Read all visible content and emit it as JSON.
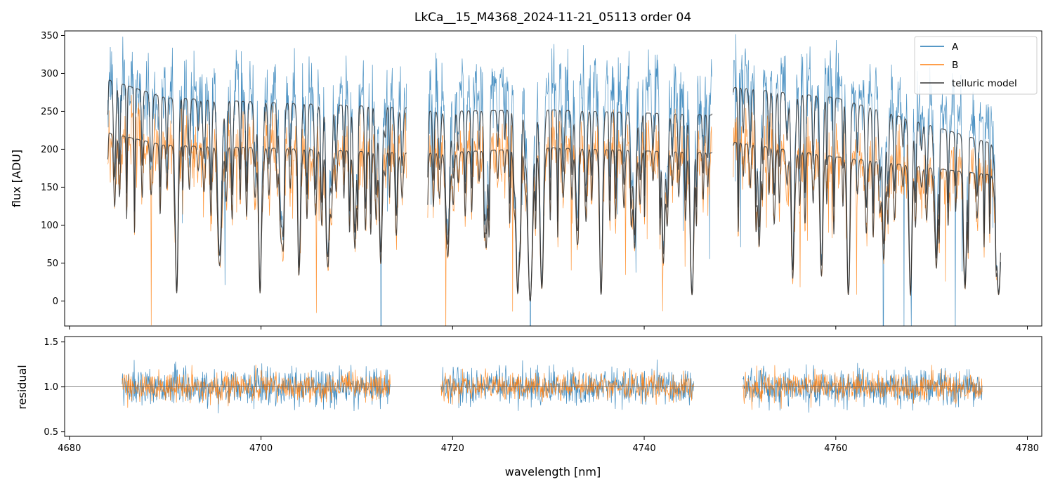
{
  "chart_data": [
    {
      "id": "spectrum",
      "type": "line",
      "title": "LkCa__15_M4368_2024-11-21_05113  order 04",
      "xlabel": "",
      "ylabel": "flux [ADU]",
      "xlim": [
        4679.5,
        4781.5
      ],
      "ylim": [
        -33,
        356
      ],
      "xticks": [
        4680,
        4700,
        4720,
        4740,
        4760,
        4780
      ],
      "xticklabels_shown": false,
      "yticks": [
        0,
        50,
        100,
        150,
        200,
        250,
        300,
        350
      ],
      "ytick_labels": [
        "0",
        "50",
        "100",
        "150",
        "200",
        "250",
        "300",
        "350"
      ],
      "legend": {
        "location": "top-right",
        "entries": [
          {
            "label": "A",
            "color": "#1f77b4"
          },
          {
            "label": "B",
            "color": "#ff7f0e"
          },
          {
            "label": "telluric model",
            "color": "#333333"
          }
        ]
      },
      "segments": [
        {
          "x_start": 4684.0,
          "x_end": 4715.2
        },
        {
          "x_start": 4717.4,
          "x_end": 4747.1
        },
        {
          "x_start": 4749.3,
          "x_end": 4777.2
        }
      ],
      "series": [
        {
          "name": "A",
          "color": "#1f77b4",
          "continuum_anchors": [
            [
              4684,
              290
            ],
            [
              4690,
              275
            ],
            [
              4700,
              275
            ],
            [
              4715,
              270
            ],
            [
              4718,
              275
            ],
            [
              4730,
              285
            ],
            [
              4747,
              275
            ],
            [
              4749,
              300
            ],
            [
              4760,
              285
            ],
            [
              4777,
              230
            ]
          ],
          "noise": 0.2
        },
        {
          "name": "B",
          "color": "#ff7f0e",
          "continuum_anchors": [
            [
              4684,
              220
            ],
            [
              4690,
              205
            ],
            [
              4700,
              205
            ],
            [
              4715,
              195
            ],
            [
              4718,
              195
            ],
            [
              4730,
              205
            ],
            [
              4747,
              195
            ],
            [
              4749,
              210
            ],
            [
              4760,
              190
            ],
            [
              4777,
              160
            ]
          ],
          "noise": 0.22
        },
        {
          "name": "telluric model",
          "color": "#333333",
          "anchors_A": [
            [
              4684,
              292
            ],
            [
              4690,
              268
            ],
            [
              4700,
              262
            ],
            [
              4715,
              255
            ],
            [
              4718,
              250
            ],
            [
              4730,
              252
            ],
            [
              4747,
              245
            ],
            [
              4749,
              282
            ],
            [
              4760,
              268
            ],
            [
              4777,
              205
            ]
          ],
          "anchors_B": [
            [
              4684,
              222
            ],
            [
              4690,
              205
            ],
            [
              4700,
              202
            ],
            [
              4715,
              195
            ],
            [
              4718,
              195
            ],
            [
              4730,
              202
            ],
            [
              4747,
              195
            ],
            [
              4749,
              210
            ],
            [
              4760,
              190
            ],
            [
              4777,
              165
            ]
          ]
        }
      ],
      "absorption_lines": [
        {
          "x": 4691.2,
          "depth": 0.95,
          "width": 0.15
        },
        {
          "x": 4695.7,
          "depth": 0.75,
          "width": 0.2
        },
        {
          "x": 4699.9,
          "depth": 0.95,
          "width": 0.15
        },
        {
          "x": 4702.1,
          "depth": 0.6,
          "width": 0.18
        },
        {
          "x": 4704.0,
          "depth": 0.7,
          "width": 0.15
        },
        {
          "x": 4707.0,
          "depth": 0.75,
          "width": 0.15
        },
        {
          "x": 4709.8,
          "depth": 0.65,
          "width": 0.15
        },
        {
          "x": 4712.5,
          "depth": 0.75,
          "width": 0.15
        },
        {
          "x": 4719.5,
          "depth": 0.7,
          "width": 0.18
        },
        {
          "x": 4723.5,
          "depth": 0.65,
          "width": 0.15
        },
        {
          "x": 4726.8,
          "depth": 0.95,
          "width": 0.2
        },
        {
          "x": 4728.1,
          "depth": 1.0,
          "width": 0.25
        },
        {
          "x": 4729.3,
          "depth": 0.9,
          "width": 0.18
        },
        {
          "x": 4733.0,
          "depth": 0.6,
          "width": 0.15
        },
        {
          "x": 4735.5,
          "depth": 0.95,
          "width": 0.15
        },
        {
          "x": 4739.0,
          "depth": 0.65,
          "width": 0.15
        },
        {
          "x": 4742.0,
          "depth": 0.75,
          "width": 0.15
        },
        {
          "x": 4745.0,
          "depth": 0.95,
          "width": 0.18
        },
        {
          "x": 4752.0,
          "depth": 0.65,
          "width": 0.15
        },
        {
          "x": 4755.5,
          "depth": 0.85,
          "width": 0.15
        },
        {
          "x": 4758.5,
          "depth": 0.7,
          "width": 0.15
        },
        {
          "x": 4761.3,
          "depth": 0.95,
          "width": 0.15
        },
        {
          "x": 4765.0,
          "depth": 0.7,
          "width": 0.15
        },
        {
          "x": 4767.8,
          "depth": 0.95,
          "width": 0.15
        },
        {
          "x": 4770.5,
          "depth": 0.75,
          "width": 0.15
        },
        {
          "x": 4773.5,
          "depth": 0.9,
          "width": 0.15
        },
        {
          "x": 4777.0,
          "depth": 0.95,
          "width": 0.25
        }
      ]
    },
    {
      "id": "residual",
      "type": "line",
      "title": "",
      "xlabel": "wavelength [nm]",
      "ylabel": "residual",
      "xlim": [
        4679.5,
        4781.5
      ],
      "ylim": [
        0.45,
        1.56
      ],
      "xticks": [
        4680,
        4700,
        4720,
        4740,
        4760,
        4780
      ],
      "xtick_labels": [
        "4680",
        "4700",
        "4720",
        "4740",
        "4760",
        "4780"
      ],
      "yticks": [
        0.5,
        1.0,
        1.5
      ],
      "ytick_labels": [
        "0.5",
        "1.0",
        "1.5"
      ],
      "reference_line": 1.0,
      "segments": [
        {
          "x_start": 4685.5,
          "x_end": 4713.5
        },
        {
          "x_start": 4718.8,
          "x_end": 4745.2
        },
        {
          "x_start": 4750.3,
          "x_end": 4775.3
        }
      ],
      "series": [
        {
          "name": "A",
          "color": "#1f77b4",
          "center": 1.0,
          "spread": 0.18
        },
        {
          "name": "B",
          "color": "#ff7f0e",
          "center": 1.0,
          "spread": 0.14
        }
      ]
    }
  ]
}
